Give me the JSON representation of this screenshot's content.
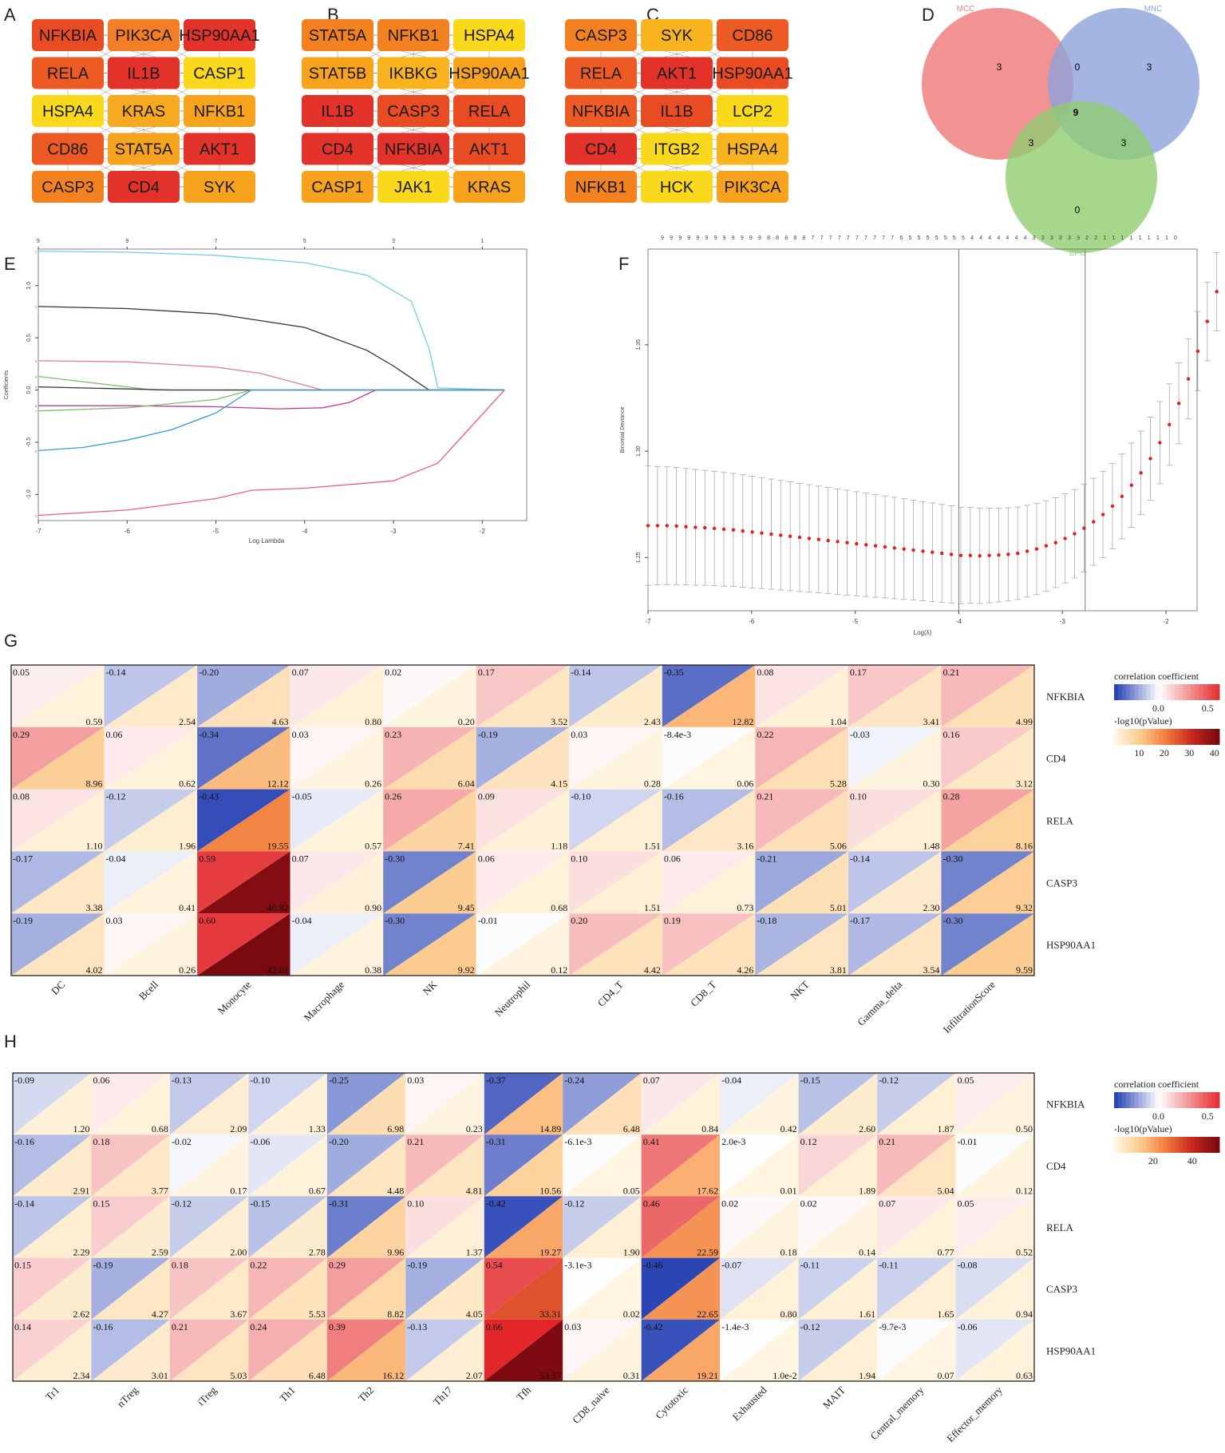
{
  "panels": {
    "A": {
      "label": "A",
      "cols": 3,
      "nodes": [
        {
          "name": "NFKBIA",
          "color": "#e94b22"
        },
        {
          "name": "PIK3CA",
          "color": "#f47e25"
        },
        {
          "name": "HSP90AA1",
          "color": "#e3322a"
        },
        {
          "name": "RELA",
          "color": "#ee5a24"
        },
        {
          "name": "IL1B",
          "color": "#e3322a"
        },
        {
          "name": "CASP1",
          "color": "#fad81c"
        },
        {
          "name": "HSPA4",
          "color": "#fad81c"
        },
        {
          "name": "KRAS",
          "color": "#f7a91f"
        },
        {
          "name": "NFKB1",
          "color": "#f8a31e"
        },
        {
          "name": "CD86",
          "color": "#ee5a24"
        },
        {
          "name": "STAT5A",
          "color": "#f8a31e"
        },
        {
          "name": "AKT1",
          "color": "#e3322a"
        },
        {
          "name": "CASP3",
          "color": "#f4811f"
        },
        {
          "name": "CD4",
          "color": "#e3322a"
        },
        {
          "name": "SYK",
          "color": "#f8a31e"
        }
      ]
    },
    "B": {
      "label": "B",
      "cols": 3,
      "nodes": [
        {
          "name": "STAT5A",
          "color": "#f4811f"
        },
        {
          "name": "NFKB1",
          "color": "#f4811f"
        },
        {
          "name": "HSPA4",
          "color": "#fad81c"
        },
        {
          "name": "STAT5B",
          "color": "#f8a31e"
        },
        {
          "name": "IKBKG",
          "color": "#f8b31e"
        },
        {
          "name": "HSP90AA1",
          "color": "#f8a31e"
        },
        {
          "name": "IL1B",
          "color": "#e3322a"
        },
        {
          "name": "CASP3",
          "color": "#e94b22"
        },
        {
          "name": "RELA",
          "color": "#e94b22"
        },
        {
          "name": "CD4",
          "color": "#e3322a"
        },
        {
          "name": "NFKBIA",
          "color": "#e3322a"
        },
        {
          "name": "AKT1",
          "color": "#e94b22"
        },
        {
          "name": "CASP1",
          "color": "#f8a31e"
        },
        {
          "name": "JAK1",
          "color": "#fad81c"
        },
        {
          "name": "KRAS",
          "color": "#f8a31e"
        }
      ]
    },
    "C": {
      "label": "C",
      "cols": 3,
      "nodes": [
        {
          "name": "CASP3",
          "color": "#f4811f"
        },
        {
          "name": "SYK",
          "color": "#f8b31e"
        },
        {
          "name": "CD86",
          "color": "#ee5a24"
        },
        {
          "name": "RELA",
          "color": "#ee5a24"
        },
        {
          "name": "AKT1",
          "color": "#e3322a"
        },
        {
          "name": "HSP90AA1",
          "color": "#e94b22"
        },
        {
          "name": "NFKBIA",
          "color": "#ee5a24"
        },
        {
          "name": "IL1B",
          "color": "#e94b22"
        },
        {
          "name": "LCP2",
          "color": "#fad81c"
        },
        {
          "name": "CD4",
          "color": "#e3322a"
        },
        {
          "name": "ITGB2",
          "color": "#fad81c"
        },
        {
          "name": "HSPA4",
          "color": "#f8b31e"
        },
        {
          "name": "NFKB1",
          "color": "#f4811f"
        },
        {
          "name": "HCK",
          "color": "#fad81c"
        },
        {
          "name": "PIK3CA",
          "color": "#f8a31e"
        }
      ]
    },
    "D": {
      "label": "D",
      "sets": [
        "MCC",
        "MNC",
        "EPC"
      ],
      "regions": {
        "mcc_only": "3",
        "mnc_only": "3",
        "epc_only": "0",
        "mcc_mnc": "0",
        "mcc_epc": "3",
        "mnc_epc": "3",
        "all": "9"
      },
      "colors": {
        "MCC": "#f08080",
        "MNC": "#8da2dc",
        "EPC": "#90cd70"
      }
    },
    "E": {
      "label": "E"
    },
    "F": {
      "label": "F"
    },
    "G": {
      "label": "G"
    },
    "H": {
      "label": "H"
    }
  },
  "chart_data": [
    {
      "id": "E",
      "type": "line",
      "title": "",
      "xlabel": "Log Lambda",
      "ylabel": "Coefficients",
      "xlim": [
        -7.0,
        -1.5
      ],
      "ylim": [
        -1.25,
        1.35
      ],
      "xticks": [
        "-7",
        "-6",
        "-5",
        "-4",
        "-3",
        "-2"
      ],
      "yticks": [
        "-1.0",
        "-0.5",
        "0.0",
        "0.5",
        "1.0"
      ],
      "top_ticks": [
        {
          "x": -7.0,
          "label": "9"
        },
        {
          "x": -6.0,
          "label": "9"
        },
        {
          "x": -5.0,
          "label": "7"
        },
        {
          "x": -4.0,
          "label": "5"
        },
        {
          "x": -3.0,
          "label": "3"
        },
        {
          "x": -2.0,
          "label": "1"
        }
      ],
      "series": [
        {
          "name": "s1",
          "color": "#6ecfe0",
          "points": [
            [
              -7,
              1.33
            ],
            [
              -6,
              1.32
            ],
            [
              -5,
              1.29
            ],
            [
              -4,
              1.22
            ],
            [
              -3.3,
              1.1
            ],
            [
              -2.8,
              0.85
            ],
            [
              -2.6,
              0.4
            ],
            [
              -2.5,
              0.02
            ],
            [
              -1.75,
              0
            ]
          ]
        },
        {
          "name": "s2",
          "color": "#333333",
          "points": [
            [
              -7,
              0.8
            ],
            [
              -6,
              0.78
            ],
            [
              -5,
              0.73
            ],
            [
              -4,
              0.6
            ],
            [
              -3.3,
              0.38
            ],
            [
              -3,
              0.23
            ],
            [
              -2.6,
              0.0
            ],
            [
              -1.75,
              0
            ]
          ]
        },
        {
          "name": "s3",
          "color": "#e07cab",
          "points": [
            [
              -7,
              0.28
            ],
            [
              -6,
              0.27
            ],
            [
              -5,
              0.22
            ],
            [
              -4.5,
              0.16
            ],
            [
              -3.8,
              0.0
            ],
            [
              -1.75,
              0
            ]
          ]
        },
        {
          "name": "s4",
          "color": "#7cc06b",
          "points": [
            [
              -7,
              0.13
            ],
            [
              -6.5,
              0.08
            ],
            [
              -6,
              0.03
            ],
            [
              -5.7,
              0.0
            ],
            [
              -1.75,
              0
            ]
          ]
        },
        {
          "name": "s5",
          "color": "#333333",
          "points": [
            [
              -7,
              0.03
            ],
            [
              -5.5,
              0.0
            ],
            [
              -1.75,
              0
            ]
          ]
        },
        {
          "name": "s6",
          "color": "#c03a95",
          "points": [
            [
              -7,
              -0.15
            ],
            [
              -6,
              -0.15
            ],
            [
              -5,
              -0.16
            ],
            [
              -4.3,
              -0.18
            ],
            [
              -3.8,
              -0.17
            ],
            [
              -3.5,
              -0.12
            ],
            [
              -3.2,
              0.0
            ],
            [
              -1.75,
              0
            ]
          ]
        },
        {
          "name": "s7",
          "color": "#7cc06b",
          "points": [
            [
              -7,
              -0.2
            ],
            [
              -6,
              -0.17
            ],
            [
              -5,
              -0.09
            ],
            [
              -4.6,
              0.0
            ],
            [
              -1.75,
              0
            ]
          ]
        },
        {
          "name": "s8",
          "color": "#3b9ad4",
          "points": [
            [
              -7,
              -0.58
            ],
            [
              -6.5,
              -0.55
            ],
            [
              -6,
              -0.48
            ],
            [
              -5.5,
              -0.38
            ],
            [
              -5,
              -0.22
            ],
            [
              -4.6,
              0.0
            ],
            [
              -1.75,
              0
            ]
          ]
        },
        {
          "name": "s9",
          "color": "#ea5d81",
          "points": [
            [
              -7,
              -1.2
            ],
            [
              -6,
              -1.15
            ],
            [
              -5,
              -1.04
            ],
            [
              -4.6,
              -0.96
            ],
            [
              -4,
              -0.94
            ],
            [
              -3,
              -0.87
            ],
            [
              -2.5,
              -0.7
            ],
            [
              -2.2,
              -0.42
            ],
            [
              -1.75,
              0.0
            ]
          ]
        }
      ]
    },
    {
      "id": "F",
      "type": "scatter",
      "title": "",
      "xlabel": "Log(λ)",
      "ylabel": "Binomial Deviance",
      "xlim": [
        -7.0,
        -1.7
      ],
      "ylim": [
        1.225,
        1.395
      ],
      "xticks": [
        "-7",
        "-6",
        "-5",
        "-4",
        "-3",
        "-2"
      ],
      "yticks": [
        "1.25",
        "1.30",
        "1.35"
      ],
      "vlines": [
        -4.0,
        -2.78
      ],
      "top_labels": [
        "9",
        "9",
        "9",
        "9",
        "9",
        "9",
        "9",
        "9",
        "9",
        "9",
        "9",
        "9",
        "8",
        "8",
        "8",
        "8",
        "8",
        "7",
        "7",
        "7",
        "7",
        "7",
        "7",
        "7",
        "7",
        "7",
        "7",
        "6",
        "5",
        "5",
        "5",
        "5",
        "5",
        "5",
        "5",
        "4",
        "4",
        "4",
        "4",
        "4",
        "4",
        "4",
        "3",
        "3",
        "3",
        "3",
        "3",
        "3",
        "2",
        "2",
        "1",
        "1",
        "1",
        "1",
        "1",
        "1",
        "1",
        "1",
        "0"
      ],
      "x_start": -7.0,
      "x_step": 0.0915,
      "means": [
        1.265,
        1.265,
        1.265,
        1.2648,
        1.2645,
        1.2642,
        1.264,
        1.2637,
        1.2633,
        1.263,
        1.2625,
        1.262,
        1.2615,
        1.261,
        1.2605,
        1.26,
        1.2595,
        1.259,
        1.2585,
        1.258,
        1.2575,
        1.257,
        1.2565,
        1.256,
        1.2555,
        1.255,
        1.2545,
        1.254,
        1.2535,
        1.253,
        1.2525,
        1.252,
        1.2515,
        1.251,
        1.251,
        1.2508,
        1.251,
        1.2512,
        1.2515,
        1.252,
        1.253,
        1.254,
        1.2555,
        1.257,
        1.259,
        1.2612,
        1.2638,
        1.2668,
        1.2702,
        1.2742,
        1.2788,
        1.284,
        1.2898,
        1.2965,
        1.304,
        1.3125,
        1.3225,
        1.334,
        1.347,
        1.361,
        1.375
      ],
      "se": 0.028
    },
    {
      "id": "G",
      "type": "heatmap",
      "rows": [
        "NFKBIA",
        "CD4",
        "RELA",
        "CASP3",
        "HSP90AA1"
      ],
      "columns": [
        "DC",
        "Bcell",
        "Monocyte",
        "Macrophage",
        "NK",
        "Neutrophil",
        "CD4_T",
        "CD8_T",
        "NKT",
        "Gamma_delta",
        "InfiltrationScore"
      ],
      "correlation": [
        [
          "0.05",
          "-0.14",
          "-0.20",
          "0.07",
          "0.02",
          "0.17",
          "-0.14",
          "-0.35",
          "0.08",
          "0.17",
          "0.21"
        ],
        [
          "0.29",
          "0.06",
          "-0.34",
          "0.03",
          "0.23",
          "-0.19",
          "0.03",
          "-8.4e-3",
          "0.22",
          "-0.03",
          "0.16"
        ],
        [
          "0.08",
          "-0.12",
          "-0.43",
          "-0.05",
          "0.26",
          "0.09",
          "-0.10",
          "-0.16",
          "0.21",
          "0.10",
          "0.28"
        ],
        [
          "-0.17",
          "-0.04",
          "0.59",
          "0.07",
          "-0.30",
          "0.06",
          "0.10",
          "0.06",
          "-0.21",
          "-0.14",
          "-0.30"
        ],
        [
          "-0.19",
          "0.03",
          "0.60",
          "-0.04",
          "-0.30",
          "-0.01",
          "0.20",
          "0.19",
          "-0.18",
          "-0.17",
          "-0.30"
        ]
      ],
      "neglog10p": [
        [
          "0.59",
          "2.54",
          "4.63",
          "0.80",
          "0.20",
          "3.52",
          "2.43",
          "12.82",
          "1.04",
          "3.41",
          "4.99"
        ],
        [
          "8.96",
          "0.62",
          "12.12",
          "0.26",
          "6.04",
          "4.15",
          "0.28",
          "0.06",
          "5.28",
          "0.30",
          "3.12"
        ],
        [
          "1.10",
          "1.96",
          "19.55",
          "0.57",
          "7.41",
          "1.18",
          "1.51",
          "3.16",
          "5.06",
          "1.48",
          "8.16"
        ],
        [
          "3.38",
          "0.41",
          "40.82",
          "0.90",
          "9.45",
          "0.68",
          "1.51",
          "0.73",
          "5.01",
          "2.30",
          "9.32"
        ],
        [
          "4.02",
          "0.26",
          "42.01",
          "0.38",
          "9.92",
          "0.12",
          "4.42",
          "4.26",
          "3.81",
          "3.54",
          "9.59"
        ]
      ],
      "legend": {
        "corr_title": "correlation coefficient",
        "corr_ticks": [
          "0.0",
          "0.5"
        ],
        "p_title": "-log10(pValue)",
        "p_ticks": [
          "10",
          "20",
          "30",
          "40"
        ],
        "p_max": 42
      }
    },
    {
      "id": "H",
      "type": "heatmap",
      "rows": [
        "NFKBIA",
        "CD4",
        "RELA",
        "CASP3",
        "HSP90AA1"
      ],
      "columns": [
        "Tr1",
        "nTreg",
        "iTreg",
        "Th1",
        "Th2",
        "Th17",
        "Tfh",
        "CD8_naive",
        "Cytotoxic",
        "Exhausted",
        "MAIT",
        "Central_memory",
        "Effector_memory"
      ],
      "correlation": [
        [
          "-0.09",
          "0.06",
          "-0.13",
          "-0.10",
          "-0.25",
          "0.03",
          "-0.37",
          "-0.24",
          "0.07",
          "-0.04",
          "-0.15",
          "-0.12",
          "0.05"
        ],
        [
          "-0.16",
          "0.18",
          "-0.02",
          "-0.06",
          "-0.20",
          "0.21",
          "-0.31",
          "-6.1e-3",
          "0.41",
          "2.0e-3",
          "0.12",
          "0.21",
          "-0.01"
        ],
        [
          "-0.14",
          "0.15",
          "-0.12",
          "-0.15",
          "-0.31",
          "0.10",
          "-0.42",
          "-0.12",
          "0.46",
          "0.02",
          "0.02",
          "0.07",
          "0.05"
        ],
        [
          "0.15",
          "-0.19",
          "0.18",
          "0.22",
          "0.29",
          "-0.19",
          "0.54",
          "-3.1e-3",
          "-0.46",
          "-0.07",
          "-0.11",
          "-0.11",
          "-0.08"
        ],
        [
          "0.14",
          "-0.16",
          "0.21",
          "0.24",
          "0.39",
          "-0.13",
          "0.66",
          "0.03",
          "-0.42",
          "-1.4e-3",
          "-0.12",
          "-9.7e-3",
          "-0.06"
        ]
      ],
      "neglog10p": [
        [
          "1.20",
          "0.68",
          "2.09",
          "1.33",
          "6.98",
          "0.23",
          "14.89",
          "6.48",
          "0.84",
          "0.42",
          "2.60",
          "1.87",
          "0.50"
        ],
        [
          "2.91",
          "3.77",
          "0.17",
          "0.67",
          "4.48",
          "4.81",
          "10.56",
          "0.05",
          "17.62",
          "0.01",
          "1.89",
          "5.04",
          "0.12"
        ],
        [
          "2.29",
          "2.59",
          "2.00",
          "2.78",
          "9.96",
          "1.37",
          "19.27",
          "1.90",
          "22.59",
          "0.18",
          "0.14",
          "0.77",
          "0.52"
        ],
        [
          "2.62",
          "4.27",
          "3.67",
          "5.53",
          "8.82",
          "4.05",
          "33.31",
          "0.02",
          "22.65",
          "0.80",
          "1.61",
          "1.65",
          "0.94"
        ],
        [
          "2.34",
          "3.01",
          "5.03",
          "6.48",
          "16.12",
          "2.07",
          "53.37",
          "0.31",
          "19.21",
          "1.0e-2",
          "1.94",
          "0.07",
          "0.63"
        ]
      ],
      "legend": {
        "corr_title": "correlation coefficient",
        "corr_ticks": [
          "0.0",
          "0.5"
        ],
        "p_title": "-log10(pValue)",
        "p_ticks": [
          "20",
          "40"
        ],
        "p_max": 54
      }
    }
  ]
}
